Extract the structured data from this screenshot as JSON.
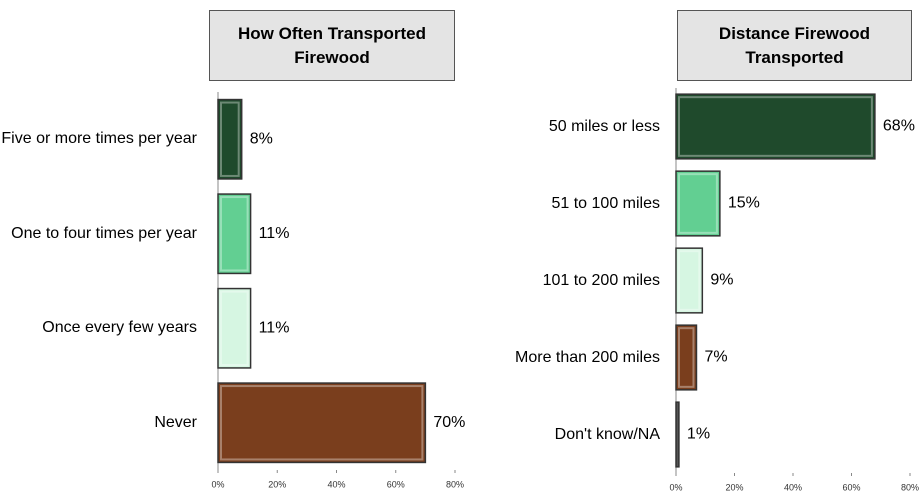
{
  "chart_data": [
    {
      "type": "bar",
      "title": "How Often Transported Firewood",
      "categories": [
        "Five or more times per year",
        "One to four times per year",
        "Once every few years",
        "Never"
      ],
      "values": [
        8,
        11,
        11,
        70
      ],
      "value_labels": [
        "8%",
        "11%",
        "11%",
        "70%"
      ],
      "colors": [
        "#1f4a2c",
        "#62cf92",
        "#d6f6e2",
        "#7a3e1d"
      ],
      "xlim": [
        0,
        80
      ],
      "xticks": [
        {
          "value": 0,
          "label": "0%"
        },
        {
          "value": 20,
          "label": "20%"
        },
        {
          "value": 40,
          "label": "40%"
        },
        {
          "value": 60,
          "label": "60%"
        },
        {
          "value": 80,
          "label": "80%"
        }
      ]
    },
    {
      "type": "bar",
      "title": "Distance Firewood Transported",
      "categories": [
        "50 miles or less",
        "51 to 100 miles",
        "101 to 200 miles",
        "More than 200 miles",
        "Don't know/NA"
      ],
      "values": [
        68,
        15,
        9,
        7,
        1
      ],
      "value_labels": [
        "68%",
        "15%",
        "9%",
        "7%",
        "1%"
      ],
      "colors": [
        "#1f4a2c",
        "#62cf92",
        "#d6f6e2",
        "#7a3e1d",
        "#555555"
      ],
      "xlim": [
        0,
        80
      ],
      "xticks": [
        {
          "value": 0,
          "label": "0%"
        },
        {
          "value": 20,
          "label": "20%"
        },
        {
          "value": 40,
          "label": "40%"
        },
        {
          "value": 60,
          "label": "60%"
        },
        {
          "value": 80,
          "label": "80%"
        }
      ]
    }
  ]
}
